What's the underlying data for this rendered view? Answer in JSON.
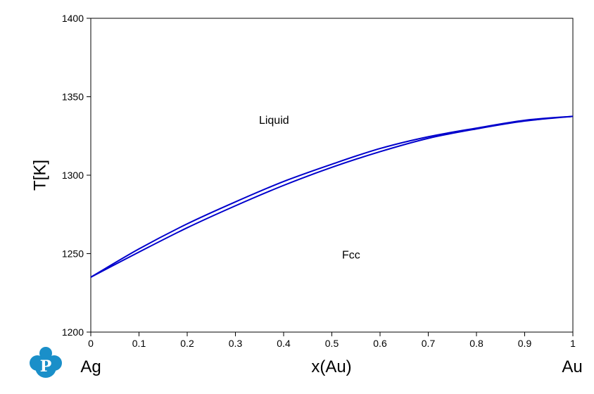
{
  "chart_data": {
    "type": "line",
    "title": "",
    "xlabel": "x(Au)",
    "ylabel": "T[K]",
    "xlim": [
      0,
      1
    ],
    "ylim": [
      1200,
      1400
    ],
    "x_ticks": [
      "0",
      "0.1",
      "0.2",
      "0.3",
      "0.4",
      "0.5",
      "0.6",
      "0.7",
      "0.8",
      "0.9",
      "1"
    ],
    "y_ticks": [
      "1200",
      "1250",
      "1300",
      "1350",
      "1400"
    ],
    "endpoint_labels": {
      "left": "Ag",
      "right": "Au"
    },
    "region_labels": [
      {
        "text": "Liquid",
        "x": 0.38,
        "y": 1335
      },
      {
        "text": "Fcc",
        "x": 0.54,
        "y": 1249
      }
    ],
    "line_color": "#0000cc",
    "grid": false,
    "legend": "none",
    "series": [
      {
        "x": [
          0,
          0.1,
          0.2,
          0.3,
          0.4,
          0.5,
          0.6,
          0.7,
          0.8,
          0.9,
          1.0
        ],
        "y": [
          1235,
          1253,
          1269,
          1283,
          1296,
          1307,
          1317,
          1324.5,
          1330,
          1335,
          1337.5
        ]
      },
      {
        "x": [
          0,
          0.1,
          0.2,
          0.3,
          0.4,
          0.5,
          0.6,
          0.7,
          0.8,
          0.9,
          1.0
        ],
        "y": [
          1235,
          1251,
          1266.5,
          1280.5,
          1293.5,
          1305,
          1315,
          1323.5,
          1329.5,
          1334.5,
          1337.5
        ]
      }
    ]
  },
  "logo": {
    "icon": "pandat-logo-icon",
    "color": "#1a8fc9",
    "letter": "P"
  }
}
